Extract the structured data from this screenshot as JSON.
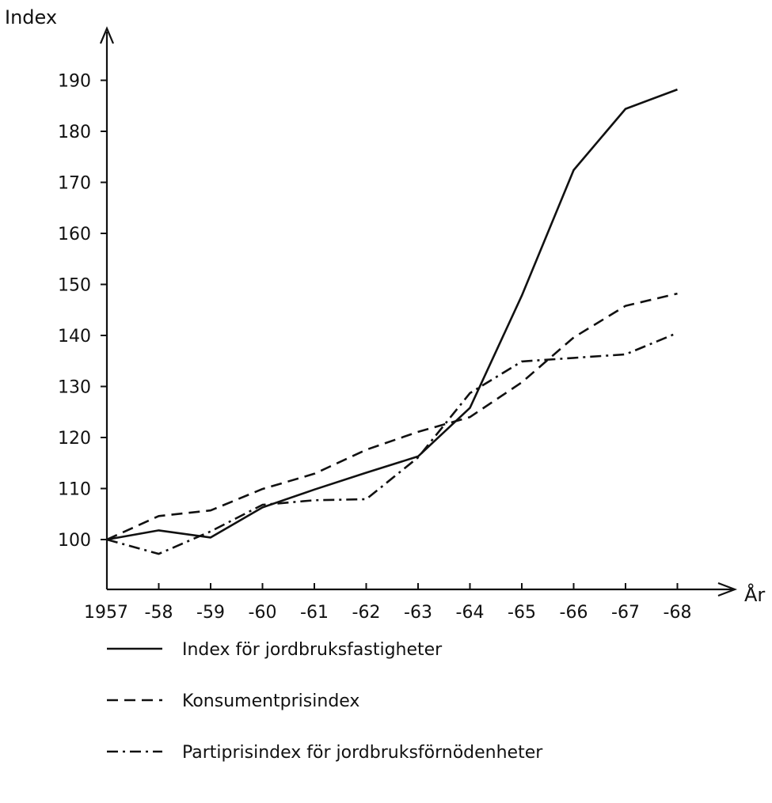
{
  "chart_data": {
    "type": "line",
    "title": "",
    "ylabel": "Index",
    "xlabel": "År",
    "x": [
      "1957",
      "-58",
      "-59",
      "-60",
      "-61",
      "-62",
      "-63",
      "-64",
      "-65",
      "-66",
      "-67",
      "-68"
    ],
    "yticks": [
      "100",
      "110",
      "120",
      "130",
      "140",
      "150",
      "160",
      "170",
      "180",
      "190"
    ],
    "ylim": [
      91.5,
      198
    ],
    "grid": false,
    "legend_position": "bottom",
    "series": [
      {
        "name": "Index för jordbruksfastigheter",
        "style": "solid",
        "values": [
          100,
          101.8,
          100.4,
          106.3,
          109.8,
          113.1,
          116.3,
          125.8,
          147.8,
          172.4,
          184.4,
          188.2
        ]
      },
      {
        "name": "Konsumentprisindex",
        "style": "dashed",
        "values": [
          100,
          104.6,
          105.7,
          109.9,
          112.9,
          117.6,
          121.1,
          124.0,
          130.8,
          139.6,
          145.8,
          148.2
        ]
      },
      {
        "name": "Partiprisindex för jordbruksförnödenheter",
        "style": "dashdot",
        "values": [
          100,
          97.2,
          101.6,
          106.8,
          107.7,
          107.9,
          116.1,
          128.7,
          134.9,
          135.6,
          136.3,
          140.5
        ]
      }
    ],
    "color": "#111111"
  }
}
